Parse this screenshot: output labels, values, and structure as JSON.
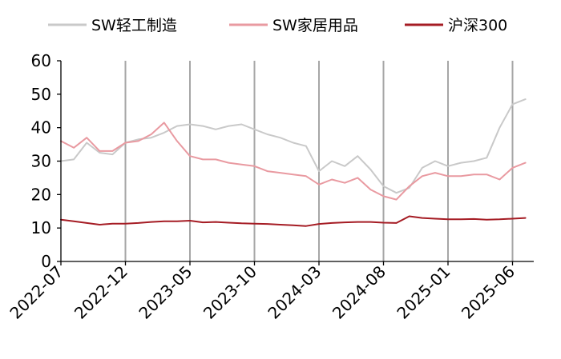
{
  "chart_data": {
    "type": "line",
    "title": "",
    "xlabel": "",
    "ylabel": "",
    "x_ticks": [
      "2022-07",
      "2022-12",
      "2023-05",
      "2023-10",
      "2024-03",
      "2024-08",
      "2025-01",
      "2025-06"
    ],
    "ylim": [
      0,
      60
    ],
    "y_ticks": [
      0,
      10,
      20,
      30,
      40,
      50,
      60
    ],
    "vertical_gridlines": true,
    "horizontal_gridlines": false,
    "legend_position": "top",
    "dates": [
      "2022-07",
      "2022-08",
      "2022-09",
      "2022-10",
      "2022-11",
      "2022-12",
      "2023-01",
      "2023-02",
      "2023-03",
      "2023-04",
      "2023-05",
      "2023-06",
      "2023-07",
      "2023-08",
      "2023-09",
      "2023-10",
      "2023-11",
      "2023-12",
      "2024-01",
      "2024-02",
      "2024-03",
      "2024-04",
      "2024-05",
      "2024-06",
      "2024-07",
      "2024-08",
      "2024-09",
      "2024-10",
      "2024-11",
      "2024-12",
      "2025-01",
      "2025-02",
      "2025-03",
      "2025-04",
      "2025-05",
      "2025-06",
      "2025-07"
    ],
    "series": [
      {
        "name": "SW轻工制造",
        "color": "#c9c9c9",
        "values": [
          30,
          30.5,
          35.5,
          32.5,
          32,
          35.5,
          36.5,
          37,
          38.5,
          40.5,
          41,
          40.5,
          39.5,
          40.5,
          41,
          39.5,
          38,
          37,
          35.5,
          34.5,
          27,
          30,
          28.5,
          31.5,
          27.5,
          22.5,
          20.5,
          22,
          28,
          30,
          28.5,
          29.5,
          30,
          31,
          40,
          47,
          48.5
        ]
      },
      {
        "name": "SW家居用品",
        "color": "#e99aa1",
        "values": [
          36,
          34,
          37,
          33,
          33,
          35.5,
          36,
          38,
          41.5,
          36,
          31.5,
          30.5,
          30.5,
          29.5,
          29,
          28.5,
          27,
          26.5,
          26,
          25.5,
          23,
          24.5,
          23.5,
          25,
          21.5,
          19.5,
          18.5,
          22.5,
          25.5,
          26.5,
          25.5,
          25.5,
          26,
          26,
          24.5,
          28,
          29.5
        ]
      },
      {
        "name": "沪深300",
        "color": "#a51c24",
        "values": [
          12.5,
          12,
          11.5,
          11,
          11.3,
          11.3,
          11.5,
          11.8,
          12,
          12,
          12.2,
          11.7,
          11.8,
          11.6,
          11.4,
          11.3,
          11.2,
          11,
          10.8,
          10.6,
          11.2,
          11.5,
          11.7,
          11.8,
          11.8,
          11.6,
          11.5,
          13.5,
          13,
          12.8,
          12.6,
          12.6,
          12.7,
          12.5,
          12.6,
          12.8,
          13
        ]
      }
    ]
  }
}
